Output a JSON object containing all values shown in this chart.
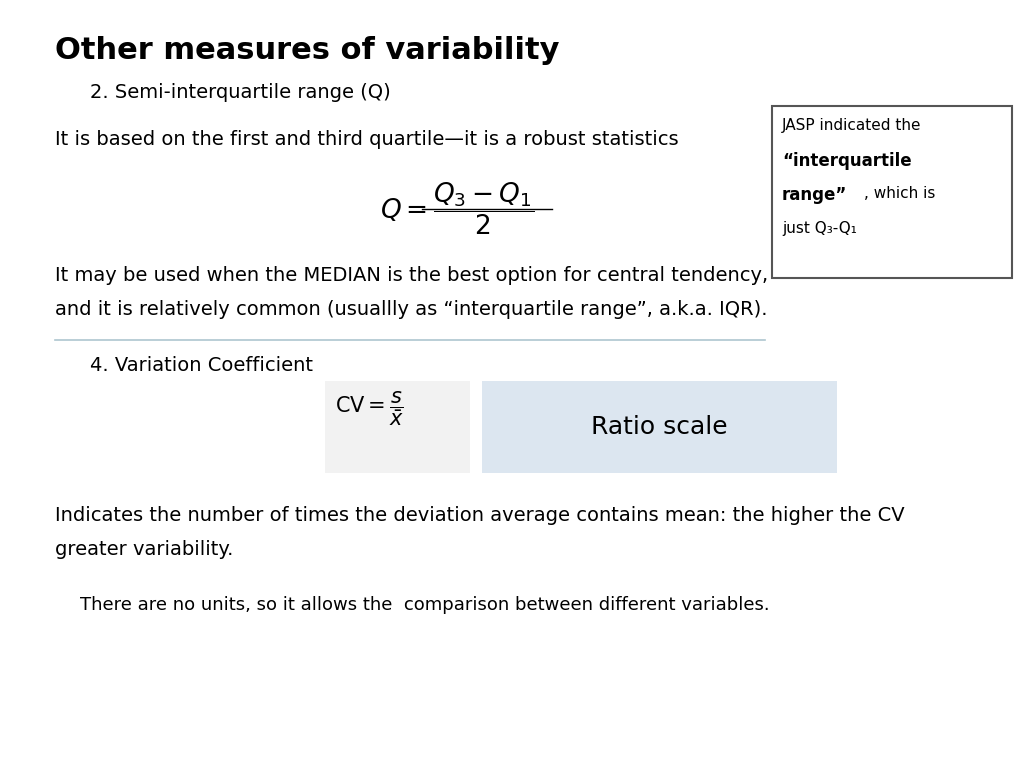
{
  "title": "Other measures of variability",
  "background_color": "#ffffff",
  "section2_header": "2. Semi-interquartile range (Q)",
  "section2_text1": "It is based on the first and third quartile—it is a robust statistics",
  "section2_text2": "It may be used when the MEDIAN is the best option for central tendency,",
  "section2_text2b": "and it is relatively common (usuallly as “interquartile range”, a.k.a. IQR).",
  "jasp_line1": "JASP indicated the",
  "jasp_line2_bold": "“interquartile",
  "jasp_line3_bold": "range”",
  "jasp_line3_normal": ", which is",
  "jasp_line4": "just Q₃-Q₁",
  "section4_header": "4. Variation Coefficient",
  "cv_ratio_label": "Ratio scale",
  "indicates_text1": "Indicates the number of times the deviation average contains mean: the higher the CV",
  "indicates_text2": "greater variability.",
  "no_units_text": "There are no units, so it allows the  comparison between different variables.",
  "ratio_box_color": "#dce6f0",
  "jasp_box_color": "#ffffff",
  "cv_box_color": "#f2f2f2",
  "sep_line_color": "#aec6cf"
}
